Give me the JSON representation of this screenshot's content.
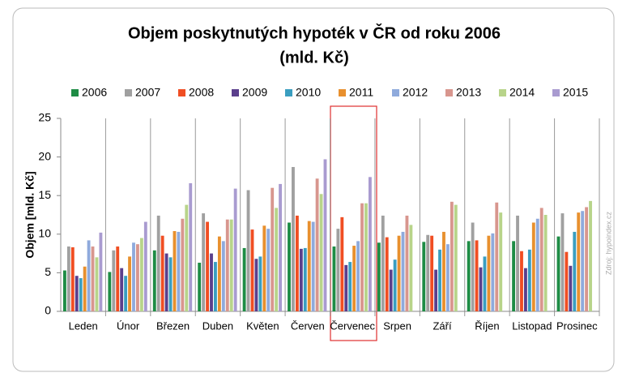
{
  "chart_data": {
    "type": "bar",
    "title": "Objem poskytnutých hypoték v ČR od roku 2006",
    "subtitle": "(mld. Kč)",
    "y_label": "Objem [mld. Kč]",
    "source": "Zdroj: hypoindex.cz",
    "categories": [
      "Leden",
      "Únor",
      "Březen",
      "Duben",
      "Květen",
      "Červen",
      "Červenec",
      "Srpen",
      "Září",
      "Říjen",
      "Listopad",
      "Prosinec"
    ],
    "series": [
      {
        "name": "2006",
        "color": "#1e8c45",
        "values": [
          5.3,
          5.1,
          7.9,
          6.3,
          8.2,
          11.5,
          8.4,
          8.9,
          9.0,
          9.1,
          9.1,
          9.7
        ]
      },
      {
        "name": "2007",
        "color": "#a0a0a0",
        "values": [
          8.4,
          7.9,
          12.4,
          12.7,
          15.7,
          18.7,
          10.7,
          12.4,
          9.9,
          11.5,
          12.4,
          12.7
        ]
      },
      {
        "name": "2008",
        "color": "#f04e23",
        "values": [
          8.3,
          8.4,
          9.8,
          11.6,
          10.6,
          12.4,
          12.2,
          9.6,
          9.8,
          9.2,
          7.8,
          7.7
        ]
      },
      {
        "name": "2009",
        "color": "#5b3f8c",
        "values": [
          4.6,
          5.6,
          7.5,
          7.5,
          6.8,
          8.1,
          6.0,
          5.4,
          5.4,
          5.7,
          5.6,
          5.9
        ]
      },
      {
        "name": "2010",
        "color": "#3a9ec0",
        "values": [
          4.3,
          4.6,
          7.0,
          6.4,
          7.1,
          8.2,
          6.4,
          6.7,
          8.0,
          7.1,
          8.0,
          10.3
        ]
      },
      {
        "name": "2011",
        "color": "#e8902e",
        "values": [
          5.8,
          7.1,
          10.4,
          9.7,
          11.1,
          11.7,
          8.5,
          9.8,
          10.3,
          9.8,
          11.5,
          12.8
        ]
      },
      {
        "name": "2012",
        "color": "#8faadc",
        "values": [
          9.2,
          8.9,
          10.3,
          9.1,
          10.7,
          11.6,
          9.1,
          10.3,
          8.7,
          10.1,
          12.0,
          13.0
        ]
      },
      {
        "name": "2013",
        "color": "#d8968e",
        "values": [
          8.4,
          8.7,
          12.0,
          11.9,
          16.0,
          17.2,
          14.0,
          12.4,
          14.2,
          14.1,
          13.4,
          13.5
        ]
      },
      {
        "name": "2014",
        "color": "#b8d48a",
        "values": [
          7.0,
          9.5,
          13.8,
          11.9,
          13.4,
          15.2,
          14.0,
          11.2,
          13.8,
          12.8,
          12.5,
          14.3
        ]
      },
      {
        "name": "2015",
        "color": "#a99bd0",
        "values": [
          10.2,
          11.6,
          16.6,
          15.9,
          16.5,
          19.7,
          17.4,
          null,
          null,
          null,
          null,
          null
        ]
      }
    ],
    "ylim": [
      0,
      25
    ],
    "yticks": [
      0,
      5,
      10,
      15,
      20,
      25
    ],
    "legend": "top"
  }
}
